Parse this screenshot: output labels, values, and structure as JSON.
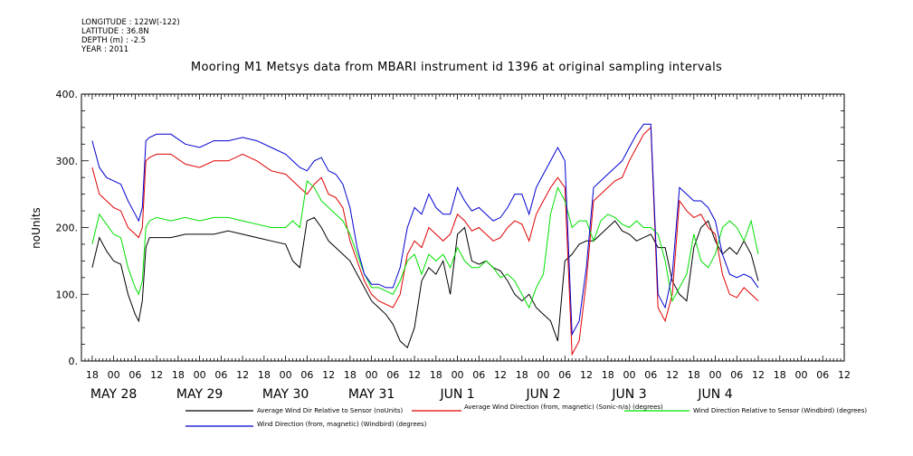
{
  "header": {
    "longitude": "LONGITUDE : 122W(-122)",
    "latitude": "LATITUDE : 36.8N",
    "depth": "DEPTH (m) : -2.5",
    "year": "YEAR : 2011"
  },
  "chart_data": {
    "type": "line",
    "title": "Mooring M1 Metsys data from MBARI instrument id 1396 at original sampling intervals",
    "ylabel": "noUnits",
    "xlabel": "",
    "ylim": [
      0,
      400
    ],
    "yticks": [
      "0.",
      "100.",
      "200.",
      "300.",
      "400."
    ],
    "x_range_hours": [
      -9,
      204
    ],
    "x_tick_hours_labels": [
      "18",
      "00",
      "06",
      "12",
      "18",
      "00",
      "06",
      "12",
      "18",
      "00",
      "06",
      "12",
      "18",
      "00",
      "06",
      "12",
      "18",
      "00",
      "06",
      "12",
      "18",
      "00",
      "06",
      "12",
      "18",
      "00",
      "06",
      "12",
      "18",
      "00",
      "06",
      "12",
      "18",
      "00",
      "06",
      "12"
    ],
    "day_labels": [
      {
        "label": "MAY 28",
        "hour": 0
      },
      {
        "label": "MAY 29",
        "hour": 24
      },
      {
        "label": "MAY 30",
        "hour": 48
      },
      {
        "label": "MAY 31",
        "hour": 72
      },
      {
        "label": "JUN  1",
        "hour": 96
      },
      {
        "label": "JUN  2",
        "hour": 120
      },
      {
        "label": "JUN  3",
        "hour": 144
      },
      {
        "label": "JUN  4",
        "hour": 168
      }
    ],
    "legend": [
      {
        "name": "Average Wind Dir Relative to Sensor (noUnits)",
        "color": "#000000"
      },
      {
        "name": "Average Wind Direction (from, magnetic) (Sonic-n/a) (degrees)",
        "color": "#e00000"
      },
      {
        "name": "Wind Direction Relative to Sensor (Windbird) (degrees)",
        "color": "#00e000"
      },
      {
        "name": "Wind Direction (from, magnetic) (Windbird) (degrees)",
        "color": "#0000d0"
      }
    ],
    "series": [
      {
        "name": "Average Wind Dir Relative to Sensor (noUnits)",
        "color": "#000000",
        "x": [
          -6,
          -4,
          -2,
          0,
          2,
          4,
          6,
          7,
          8,
          9,
          10,
          12,
          16,
          20,
          24,
          28,
          32,
          36,
          40,
          44,
          48,
          50,
          52,
          54,
          56,
          58,
          60,
          62,
          64,
          66,
          68,
          70,
          72,
          74,
          76,
          78,
          80,
          82,
          84,
          86,
          88,
          90,
          92,
          94,
          96,
          98,
          100,
          102,
          104,
          106,
          108,
          110,
          112,
          114,
          116,
          118,
          120,
          122,
          124,
          126,
          128,
          130,
          132,
          134,
          136,
          138,
          140,
          142,
          144,
          146,
          148,
          150,
          152,
          154,
          156,
          158,
          160,
          162,
          164,
          166,
          168,
          170,
          172,
          174,
          176,
          178,
          180
        ],
        "y": [
          140,
          185,
          165,
          150,
          145,
          100,
          70,
          60,
          90,
          170,
          185,
          185,
          185,
          190,
          190,
          190,
          195,
          190,
          185,
          180,
          175,
          150,
          140,
          210,
          215,
          200,
          180,
          170,
          160,
          150,
          130,
          110,
          90,
          80,
          70,
          55,
          30,
          20,
          50,
          120,
          140,
          130,
          150,
          100,
          190,
          200,
          150,
          145,
          150,
          140,
          135,
          120,
          100,
          90,
          100,
          80,
          70,
          60,
          30,
          150,
          160,
          175,
          180,
          180,
          190,
          200,
          210,
          195,
          190,
          180,
          185,
          190,
          170,
          170,
          120,
          100,
          90,
          170,
          200,
          210,
          180,
          160,
          170,
          160,
          180,
          160,
          120
        ]
      },
      {
        "name": "Average Wind Direction (from, magnetic) (Sonic-n/a) (degrees)",
        "color": "#e00000",
        "x": [
          -6,
          -4,
          -2,
          0,
          2,
          4,
          6,
          7,
          8,
          9,
          10,
          12,
          16,
          20,
          24,
          28,
          32,
          36,
          40,
          44,
          48,
          50,
          52,
          54,
          56,
          58,
          60,
          62,
          64,
          66,
          68,
          70,
          72,
          74,
          76,
          78,
          80,
          82,
          84,
          86,
          88,
          90,
          92,
          94,
          96,
          98,
          100,
          102,
          104,
          106,
          108,
          110,
          112,
          114,
          116,
          118,
          120,
          122,
          124,
          126,
          128,
          130,
          132,
          134,
          136,
          138,
          140,
          142,
          144,
          146,
          148,
          150,
          152,
          154,
          156,
          158,
          160,
          162,
          164,
          166,
          168,
          170,
          172,
          174,
          176,
          178,
          180
        ],
        "y": [
          290,
          250,
          240,
          230,
          225,
          200,
          190,
          185,
          200,
          300,
          305,
          310,
          310,
          295,
          290,
          300,
          300,
          310,
          300,
          285,
          280,
          270,
          260,
          250,
          265,
          275,
          250,
          245,
          230,
          180,
          150,
          120,
          100,
          90,
          85,
          80,
          100,
          160,
          180,
          170,
          200,
          190,
          180,
          190,
          220,
          210,
          195,
          200,
          190,
          180,
          185,
          200,
          210,
          205,
          180,
          220,
          240,
          260,
          275,
          260,
          10,
          30,
          120,
          240,
          250,
          260,
          270,
          275,
          300,
          320,
          340,
          350,
          80,
          60,
          100,
          240,
          225,
          215,
          220,
          200,
          190,
          130,
          100,
          95,
          110,
          100,
          90
        ]
      },
      {
        "name": "Wind Direction Relative to Sensor (Windbird) (degrees)",
        "color": "#00e000",
        "x": [
          -6,
          -4,
          -2,
          0,
          2,
          4,
          6,
          7,
          8,
          9,
          10,
          12,
          16,
          20,
          24,
          28,
          32,
          36,
          40,
          44,
          48,
          50,
          52,
          54,
          56,
          58,
          60,
          62,
          64,
          66,
          68,
          70,
          72,
          74,
          76,
          78,
          80,
          82,
          84,
          86,
          88,
          90,
          92,
          94,
          96,
          98,
          100,
          102,
          104,
          106,
          108,
          110,
          112,
          114,
          116,
          118,
          120,
          122,
          124,
          126,
          128,
          130,
          132,
          134,
          136,
          138,
          140,
          142,
          144,
          146,
          148,
          150,
          152,
          154,
          156,
          158,
          160,
          162,
          164,
          166,
          168,
          170,
          172,
          174,
          176,
          178,
          180
        ],
        "y": [
          175,
          220,
          205,
          190,
          185,
          140,
          110,
          100,
          120,
          200,
          210,
          215,
          210,
          215,
          210,
          215,
          215,
          210,
          205,
          200,
          200,
          210,
          200,
          270,
          260,
          240,
          230,
          220,
          210,
          190,
          160,
          130,
          110,
          110,
          105,
          100,
          120,
          150,
          160,
          130,
          160,
          150,
          160,
          140,
          170,
          150,
          140,
          140,
          150,
          140,
          125,
          130,
          120,
          100,
          80,
          110,
          130,
          220,
          260,
          240,
          200,
          210,
          210,
          180,
          210,
          220,
          215,
          205,
          200,
          210,
          200,
          200,
          190,
          150,
          90,
          110,
          130,
          190,
          150,
          140,
          160,
          200,
          210,
          200,
          180,
          210,
          160
        ]
      },
      {
        "name": "Wind Direction (from, magnetic) (Windbird) (degrees)",
        "color": "#0000d0",
        "x": [
          -6,
          -4,
          -2,
          0,
          2,
          4,
          6,
          7,
          8,
          9,
          10,
          12,
          16,
          20,
          24,
          28,
          32,
          36,
          40,
          44,
          48,
          50,
          52,
          54,
          56,
          58,
          60,
          62,
          64,
          66,
          68,
          70,
          72,
          74,
          76,
          78,
          80,
          82,
          84,
          86,
          88,
          90,
          92,
          94,
          96,
          98,
          100,
          102,
          104,
          106,
          108,
          110,
          112,
          114,
          116,
          118,
          120,
          122,
          124,
          126,
          128,
          130,
          132,
          134,
          136,
          138,
          140,
          142,
          144,
          146,
          148,
          150,
          152,
          154,
          156,
          158,
          160,
          162,
          164,
          166,
          168,
          170,
          172,
          174,
          176,
          178,
          180
        ],
        "y": [
          330,
          290,
          275,
          270,
          265,
          240,
          220,
          210,
          230,
          330,
          335,
          340,
          340,
          325,
          320,
          330,
          330,
          335,
          330,
          320,
          310,
          300,
          290,
          285,
          300,
          305,
          285,
          280,
          265,
          230,
          170,
          130,
          115,
          115,
          110,
          110,
          140,
          200,
          230,
          220,
          250,
          230,
          220,
          220,
          260,
          240,
          225,
          230,
          220,
          210,
          215,
          230,
          250,
          250,
          220,
          260,
          280,
          300,
          320,
          300,
          40,
          60,
          140,
          260,
          270,
          280,
          290,
          300,
          320,
          340,
          355,
          355,
          100,
          80,
          130,
          260,
          250,
          240,
          240,
          230,
          210,
          160,
          130,
          125,
          130,
          125,
          110
        ]
      }
    ]
  }
}
